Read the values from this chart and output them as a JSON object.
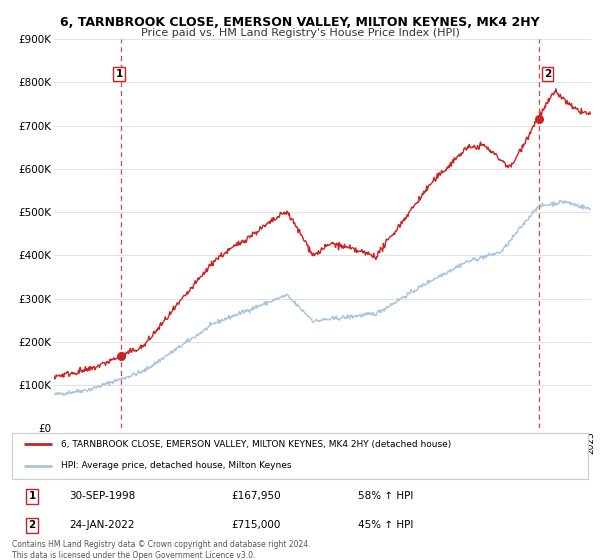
{
  "title": "6, TARNBROOK CLOSE, EMERSON VALLEY, MILTON KEYNES, MK4 2HY",
  "subtitle": "Price paid vs. HM Land Registry's House Price Index (HPI)",
  "hpi_label": "HPI: Average price, detached house, Milton Keynes",
  "property_label": "6, TARNBROOK CLOSE, EMERSON VALLEY, MILTON KEYNES, MK4 2HY (detached house)",
  "sale1_date": "30-SEP-1998",
  "sale1_price": "£167,950",
  "sale1_hpi": "58% ↑ HPI",
  "sale1_year": 1998.75,
  "sale1_value": 167950,
  "sale2_date": "24-JAN-2022",
  "sale2_price": "£715,000",
  "sale2_hpi": "45% ↑ HPI",
  "sale2_year": 2022.07,
  "sale2_value": 715000,
  "hpi_color": "#aac4e0",
  "property_color": "#cc2222",
  "dot_color": "#cc2222",
  "vline_color": "#dd4444",
  "plot_bg": "#ffffff",
  "grid_color": "#dddddd",
  "footnote": "Contains HM Land Registry data © Crown copyright and database right 2024.\nThis data is licensed under the Open Government Licence v3.0.",
  "ylim": [
    0,
    900000
  ],
  "yticks": [
    0,
    100000,
    200000,
    300000,
    400000,
    500000,
    600000,
    700000,
    800000,
    900000
  ],
  "ytick_labels": [
    "£0",
    "£100K",
    "£200K",
    "£300K",
    "£400K",
    "£500K",
    "£600K",
    "£700K",
    "£800K",
    "£900K"
  ],
  "xstart": 1995,
  "xend": 2025
}
